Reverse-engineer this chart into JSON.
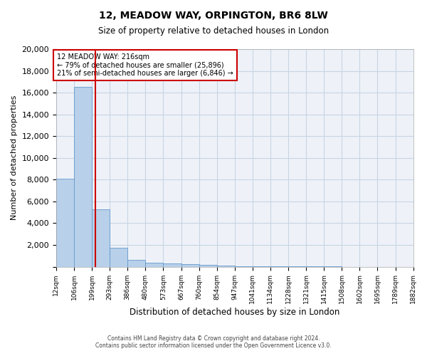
{
  "title": "12, MEADOW WAY, ORPINGTON, BR6 8LW",
  "subtitle": "Size of property relative to detached houses in London",
  "xlabel": "Distribution of detached houses by size in London",
  "ylabel": "Number of detached properties",
  "bar_values": [
    8100,
    16500,
    5300,
    1750,
    650,
    350,
    270,
    220,
    170,
    100,
    60,
    40,
    25,
    15,
    10,
    7,
    5,
    4,
    3,
    2
  ],
  "bin_edges": [
    12,
    106,
    199,
    293,
    386,
    480,
    573,
    667,
    760,
    854,
    947,
    1041,
    1134,
    1228,
    1321,
    1415,
    1508,
    1602,
    1695,
    1789,
    1882
  ],
  "tick_labels": [
    "12sqm",
    "106sqm",
    "199sqm",
    "293sqm",
    "386sqm",
    "480sqm",
    "573sqm",
    "667sqm",
    "760sqm",
    "854sqm",
    "947sqm",
    "1041sqm",
    "1134sqm",
    "1228sqm",
    "1321sqm",
    "1415sqm",
    "1508sqm",
    "1602sqm",
    "1695sqm",
    "1789sqm",
    "1882sqm"
  ],
  "bar_color": "#b8d0ea",
  "bar_edge_color": "#6699cc",
  "grid_color": "#c8d4e4",
  "background_color": "#eef2f8",
  "vline_x": 216,
  "vline_color": "#cc0000",
  "annotation_text": "12 MEADOW WAY: 216sqm\n← 79% of detached houses are smaller (25,896)\n21% of semi-detached houses are larger (6,846) →",
  "annotation_box_color": "#cc0000",
  "ylim": [
    0,
    20000
  ],
  "yticks": [
    0,
    2000,
    4000,
    6000,
    8000,
    10000,
    12000,
    14000,
    16000,
    18000,
    20000
  ],
  "footer_line1": "Contains HM Land Registry data © Crown copyright and database right 2024.",
  "footer_line2": "Contains public sector information licensed under the Open Government Licence v3.0."
}
